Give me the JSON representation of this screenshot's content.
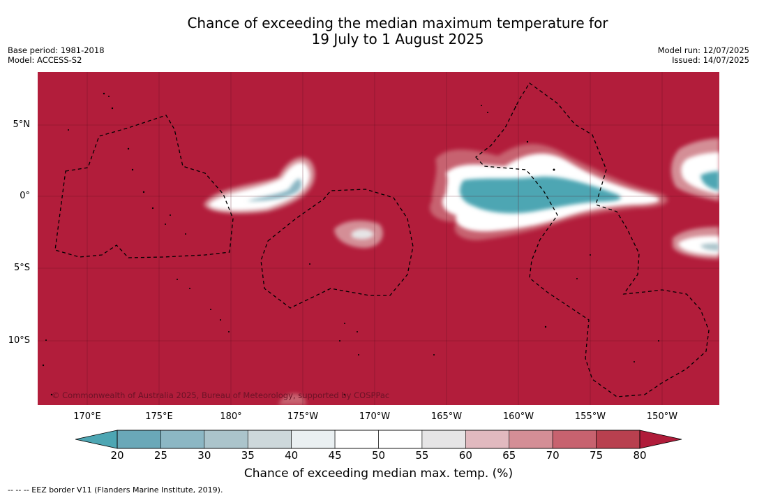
{
  "title": {
    "line1": "Chance of exceeding the median maximum temperature for",
    "line2": "19 July to 1 August 2025"
  },
  "meta_left": {
    "base_period": "Base period: 1981-2018",
    "model": "Model: ACCESS-S2"
  },
  "meta_right": {
    "model_run": "Model run: 12/07/2025",
    "issued": "Issued: 14/07/2025"
  },
  "copyright": "© Commonwealth of Australia 2025, Bureau of Meteorology, supported by COSPPac",
  "lat_labels": [
    "5°N",
    "0°",
    "5°S",
    "10°S"
  ],
  "lon_labels": [
    "170°E",
    "175°E",
    "180°",
    "175°W",
    "170°W",
    "165°W",
    "160°W",
    "155°W",
    "150°W"
  ],
  "colorbar": {
    "ticks": [
      "20",
      "25",
      "30",
      "35",
      "40",
      "45",
      "50",
      "55",
      "60",
      "65",
      "70",
      "75",
      "80"
    ],
    "colors": [
      "#6aa8b8",
      "#8cb7c4",
      "#abc4cb",
      "#cdd8db",
      "#eaf0f2",
      "#ffffff",
      "#ffffff",
      "#e6e5e6",
      "#e1b9bf",
      "#d48e96",
      "#c7626f",
      "#b8404f"
    ],
    "under_color": "#4da6b3",
    "over_color": "#b01c3a",
    "label": "Chance of exceeding median max. temp. (%)"
  },
  "map_colors": {
    "background": "#b21d3b",
    "teal": "#4da6b3",
    "white": "#ffffff"
  },
  "footnote": "--  --  -- EEZ border V11 (Flanders Marine Institute, 2019)."
}
